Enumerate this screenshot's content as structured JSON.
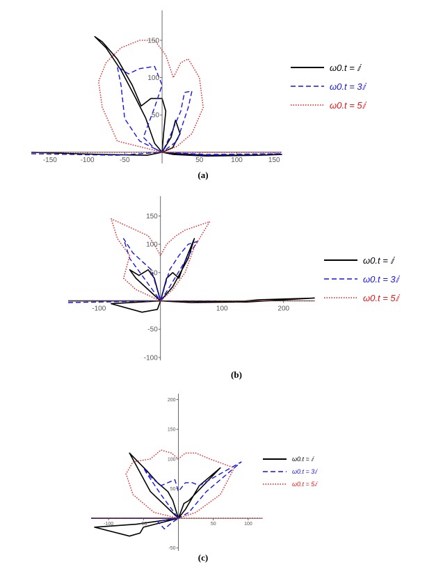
{
  "chart_data": [
    {
      "panel_label": "(a)",
      "type": "line",
      "x_ticks": [
        "-150",
        "-100",
        "-50",
        "50",
        "100",
        "150"
      ],
      "y_ticks": [
        "50",
        "100",
        "150"
      ],
      "xlim": [
        -175,
        160
      ],
      "ylim": [
        -15,
        190
      ],
      "legend_position": "right",
      "series": [
        {
          "name": "ω0.t = ⅈ",
          "color": "#000000",
          "style": "solid",
          "points": [
            [
              -175,
              0
            ],
            [
              -80,
              -3
            ],
            [
              -20,
              -4
            ],
            [
              0,
              0
            ],
            [
              15,
              -3
            ],
            [
              60,
              -5
            ],
            [
              130,
              -4
            ],
            [
              160,
              -3
            ],
            [
              130,
              -4
            ],
            [
              60,
              -4
            ],
            [
              20,
              -2
            ],
            [
              0,
              0
            ],
            [
              12,
              20
            ],
            [
              18,
              43
            ],
            [
              24,
              25
            ],
            [
              14,
              6
            ],
            [
              0,
              0
            ],
            [
              -10,
              12
            ],
            [
              -22,
              46
            ],
            [
              -35,
              72
            ],
            [
              -55,
              110
            ],
            [
              -75,
              140
            ],
            [
              -90,
              155
            ],
            [
              -80,
              148
            ],
            [
              -60,
              125
            ],
            [
              -40,
              90
            ],
            [
              -28,
              62
            ],
            [
              -15,
              72
            ],
            [
              0,
              72
            ],
            [
              5,
              55
            ],
            [
              2,
              25
            ],
            [
              0,
              0
            ]
          ]
        },
        {
          "name": "ω0.t = 3ⅈ",
          "color": "#1414e6",
          "style": "dashed",
          "points": [
            [
              -175,
              -2
            ],
            [
              -60,
              -4
            ],
            [
              0,
              0
            ],
            [
              60,
              -4
            ],
            [
              160,
              -2
            ],
            [
              60,
              -3
            ],
            [
              0,
              0
            ],
            [
              20,
              15
            ],
            [
              35,
              60
            ],
            [
              40,
              82
            ],
            [
              30,
              80
            ],
            [
              25,
              55
            ],
            [
              10,
              20
            ],
            [
              0,
              0
            ],
            [
              -30,
              15
            ],
            [
              -50,
              45
            ],
            [
              -55,
              90
            ],
            [
              -60,
              115
            ],
            [
              -45,
              105
            ],
            [
              -30,
              112
            ],
            [
              -10,
              115
            ],
            [
              0,
              90
            ],
            [
              -10,
              60
            ],
            [
              -25,
              20
            ],
            [
              -10,
              5
            ],
            [
              0,
              0
            ]
          ]
        },
        {
          "name": "ω0.t = 5ⅈ",
          "color": "#e61414",
          "style": "dotted",
          "points": [
            [
              -175,
              0
            ],
            [
              160,
              0
            ],
            [
              0,
              0
            ],
            [
              -20,
              5
            ],
            [
              -60,
              15
            ],
            [
              -80,
              60
            ],
            [
              -85,
              95
            ],
            [
              -75,
              120
            ],
            [
              -55,
              140
            ],
            [
              -30,
              150
            ],
            [
              -10,
              150
            ],
            [
              5,
              130
            ],
            [
              15,
              100
            ],
            [
              25,
              120
            ],
            [
              35,
              125
            ],
            [
              50,
              100
            ],
            [
              55,
              60
            ],
            [
              40,
              25
            ],
            [
              20,
              8
            ],
            [
              0,
              0
            ]
          ]
        }
      ]
    },
    {
      "panel_label": "(b)",
      "type": "line",
      "x_ticks": [
        "-100",
        "100",
        "200"
      ],
      "y_ticks": [
        "150",
        "100",
        "50",
        "-50",
        "-100"
      ],
      "xlim": [
        -150,
        250
      ],
      "ylim": [
        -105,
        185
      ],
      "legend_position": "right",
      "series": [
        {
          "name": "ω0.t = ⅈ",
          "color": "#000000",
          "style": "solid",
          "points": [
            [
              -150,
              0
            ],
            [
              0,
              0
            ],
            [
              -80,
              -5
            ],
            [
              -30,
              -20
            ],
            [
              -5,
              -15
            ],
            [
              0,
              0
            ],
            [
              50,
              -3
            ],
            [
              120,
              -2
            ],
            [
              160,
              2
            ],
            [
              250,
              5
            ],
            [
              140,
              -2
            ],
            [
              0,
              0
            ],
            [
              -40,
              40
            ],
            [
              -50,
              55
            ],
            [
              -35,
              45
            ],
            [
              -20,
              55
            ],
            [
              -10,
              40
            ],
            [
              0,
              0
            ],
            [
              10,
              40
            ],
            [
              20,
              50
            ],
            [
              30,
              40
            ],
            [
              40,
              70
            ],
            [
              55,
              110
            ],
            [
              45,
              75
            ],
            [
              20,
              25
            ],
            [
              0,
              0
            ]
          ]
        },
        {
          "name": "ω0.t = 3ⅈ",
          "color": "#1414e6",
          "style": "dashed",
          "points": [
            [
              -150,
              -3
            ],
            [
              0,
              0
            ],
            [
              90,
              0
            ],
            [
              0,
              0
            ],
            [
              -20,
              30
            ],
            [
              -50,
              75
            ],
            [
              -60,
              110
            ],
            [
              -45,
              85
            ],
            [
              -30,
              70
            ],
            [
              -15,
              55
            ],
            [
              0,
              0
            ],
            [
              15,
              55
            ],
            [
              30,
              80
            ],
            [
              45,
              100
            ],
            [
              60,
              105
            ],
            [
              40,
              70
            ],
            [
              15,
              25
            ],
            [
              0,
              0
            ]
          ]
        },
        {
          "name": "ω0.t = 5ⅈ",
          "color": "#e61414",
          "style": "dotted",
          "points": [
            [
              -150,
              0
            ],
            [
              250,
              0
            ],
            [
              0,
              0
            ],
            [
              -40,
              20
            ],
            [
              -60,
              40
            ],
            [
              -50,
              80
            ],
            [
              -70,
              110
            ],
            [
              -80,
              145
            ],
            [
              -40,
              125
            ],
            [
              -20,
              115
            ],
            [
              -10,
              100
            ],
            [
              0,
              80
            ],
            [
              10,
              100
            ],
            [
              25,
              115
            ],
            [
              40,
              125
            ],
            [
              80,
              140
            ],
            [
              55,
              95
            ],
            [
              40,
              50
            ],
            [
              20,
              20
            ],
            [
              0,
              0
            ]
          ]
        }
      ]
    },
    {
      "panel_label": "(c)",
      "type": "line",
      "x_ticks": [
        "-100",
        "-50",
        "50",
        "100"
      ],
      "y_ticks": [
        "200",
        "150",
        "100",
        "50",
        "-50"
      ],
      "xlim": [
        -125,
        120
      ],
      "ylim": [
        -55,
        210
      ],
      "legend_position": "right",
      "series": [
        {
          "name": "ω0.t = ⅈ",
          "color": "#000000",
          "style": "solid",
          "points": [
            [
              -125,
              0
            ],
            [
              0,
              0
            ],
            [
              -60,
              -10
            ],
            [
              -120,
              -15
            ],
            [
              -70,
              -30
            ],
            [
              -55,
              -25
            ],
            [
              -50,
              -15
            ],
            [
              0,
              0
            ],
            [
              -40,
              45
            ],
            [
              -70,
              110
            ],
            [
              -45,
              80
            ],
            [
              -30,
              60
            ],
            [
              -15,
              45
            ],
            [
              -8,
              30
            ],
            [
              0,
              0
            ],
            [
              8,
              25
            ],
            [
              15,
              30
            ],
            [
              60,
              85
            ],
            [
              30,
              55
            ],
            [
              10,
              15
            ],
            [
              0,
              0
            ]
          ]
        },
        {
          "name": "ω0.t = 3ⅈ",
          "color": "#1414e6",
          "style": "dashed",
          "points": [
            [
              -125,
              0
            ],
            [
              0,
              0
            ],
            [
              -30,
              -5
            ],
            [
              -20,
              -18
            ],
            [
              -10,
              -8
            ],
            [
              0,
              0
            ],
            [
              -25,
              40
            ],
            [
              -45,
              75
            ],
            [
              -50,
              85
            ],
            [
              -40,
              70
            ],
            [
              -25,
              55
            ],
            [
              -15,
              60
            ],
            [
              -5,
              65
            ],
            [
              0,
              45
            ],
            [
              10,
              60
            ],
            [
              20,
              60
            ],
            [
              30,
              55
            ],
            [
              90,
              95
            ],
            [
              40,
              45
            ],
            [
              15,
              10
            ],
            [
              0,
              0
            ]
          ]
        },
        {
          "name": "ω0.t = 5ⅈ",
          "color": "#e61414",
          "style": "dotted",
          "points": [
            [
              -125,
              0
            ],
            [
              120,
              0
            ],
            [
              0,
              0
            ],
            [
              -35,
              10
            ],
            [
              -65,
              40
            ],
            [
              -75,
              75
            ],
            [
              -65,
              95
            ],
            [
              -40,
              100
            ],
            [
              -25,
              115
            ],
            [
              -10,
              110
            ],
            [
              0,
              100
            ],
            [
              10,
              110
            ],
            [
              25,
              110
            ],
            [
              45,
              100
            ],
            [
              80,
              85
            ],
            [
              60,
              40
            ],
            [
              25,
              10
            ],
            [
              0,
              0
            ]
          ]
        }
      ]
    }
  ]
}
